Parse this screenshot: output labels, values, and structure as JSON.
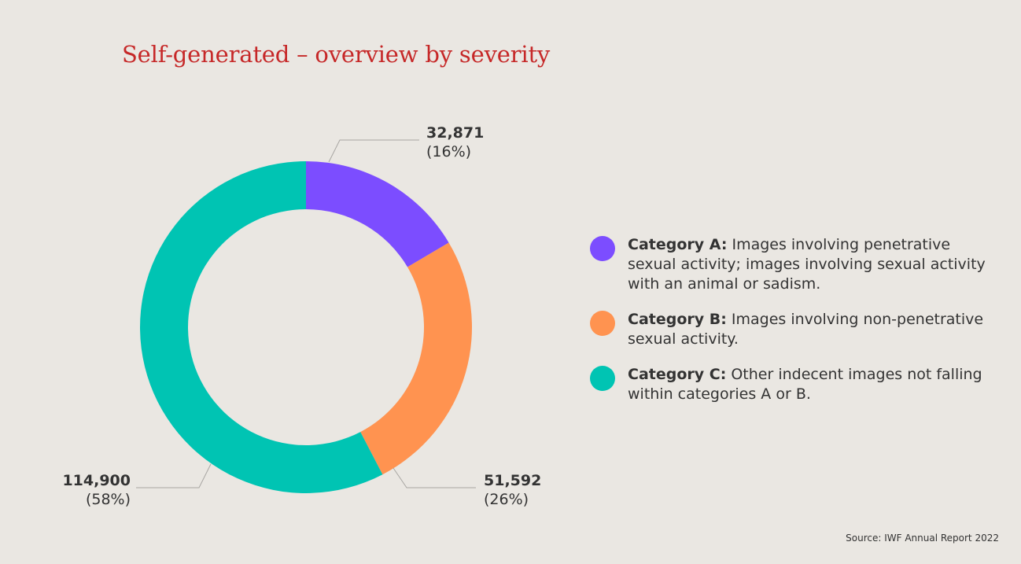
{
  "title": "Self-generated – overview by severity",
  "source": "Source: IWF Annual Report 2022",
  "colors": {
    "category_a": "#7C4DFF",
    "category_b": "#FF9350",
    "category_c": "#00C4B3",
    "title": "#C62828",
    "background": "#EAE7E2"
  },
  "chart_data": {
    "type": "pie",
    "variant": "donut",
    "title": "Self-generated – overview by severity",
    "categories": [
      "Category A",
      "Category B",
      "Category C"
    ],
    "values": [
      32871,
      51592,
      114900
    ],
    "percent": [
      16,
      26,
      58
    ],
    "labels": [
      {
        "value": "32,871",
        "percent": "(16%)"
      },
      {
        "value": "51,592",
        "percent": "(26%)"
      },
      {
        "value": "114,900",
        "percent": "(58%)"
      }
    ]
  },
  "legend": [
    {
      "category": "Category A:",
      "text": " Images involving penetrative sexual activity; images involving sexual activity with an animal or sadism."
    },
    {
      "category": "Category B:",
      "text": " Images involving non-penetrative sexual activity."
    },
    {
      "category": "Category C:",
      "text": " Other indecent images not falling within categories A or B."
    }
  ]
}
